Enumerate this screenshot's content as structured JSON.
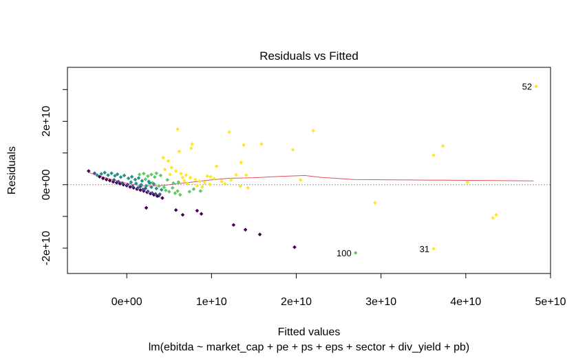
{
  "chart_data": {
    "type": "scatter",
    "title": "Residuals vs Fitted",
    "xlabel": "Fitted values",
    "subtitle": "lm(ebitda ~ market_cap + pe + ps + eps + sector + div_yield + pb)",
    "ylabel": "Residuals",
    "xlim": [
      -7000000000.0,
      50000000000.0
    ],
    "ylim": [
      -28000000000.0,
      37000000000.0
    ],
    "x_ticks": [
      {
        "value": 0,
        "label": "0e+00"
      },
      {
        "value": 10000000000,
        "label": "1e+10"
      },
      {
        "value": 20000000000,
        "label": "2e+10"
      },
      {
        "value": 30000000000,
        "label": "3e+10"
      },
      {
        "value": 40000000000,
        "label": "4e+10"
      },
      {
        "value": 50000000000,
        "label": "5e+10"
      }
    ],
    "y_ticks": [
      {
        "value": -20000000000,
        "label": "-2e+10"
      },
      {
        "value": 0,
        "label": "0e+00"
      },
      {
        "value": 20000000000,
        "label": "2e+10"
      }
    ],
    "y_minor_ticks": [
      -10000000000,
      10000000000,
      30000000000
    ],
    "reference_line_y": 0,
    "colors": {
      "smoother": "#e05060",
      "reference": "#999999",
      "frame": "#000000",
      "palette": [
        "#440154",
        "#3b528b",
        "#21918c",
        "#5ec962",
        "#fde725"
      ]
    },
    "smoother": [
      [
        -4500000000.0,
        3800000000.0
      ],
      [
        -2000000000.0,
        1800000000.0
      ],
      [
        0,
        400000000.0
      ],
      [
        2000000000.0,
        -400000000.0
      ],
      [
        4000000000.0,
        -300000000.0
      ],
      [
        6000000000.0,
        300000000.0
      ],
      [
        8000000000.0,
        900000000.0
      ],
      [
        10000000000.0,
        1500000000.0
      ],
      [
        12000000000.0,
        2000000000.0
      ],
      [
        15000000000.0,
        2200000000.0
      ],
      [
        18000000000.0,
        2600000000.0
      ],
      [
        21000000000.0,
        2900000000.0
      ],
      [
        23000000000.0,
        2300000000.0
      ],
      [
        27000000000.0,
        1600000000.0
      ],
      [
        32000000000.0,
        1500000000.0
      ],
      [
        38000000000.0,
        1400000000.0
      ],
      [
        43000000000.0,
        1300000000.0
      ],
      [
        48000000000.0,
        1200000000.0
      ]
    ],
    "points": [
      {
        "x": 48300000000.0,
        "y": 31000000000.0,
        "c": 4,
        "label": "52"
      },
      {
        "x": 27000000000.0,
        "y": -21500000000.0,
        "c": 3,
        "label": "100"
      },
      {
        "x": 36200000000.0,
        "y": -20200000000.0,
        "c": 4,
        "label": "31"
      },
      {
        "x": 37300000000.0,
        "y": 12200000000.0,
        "c": 4
      },
      {
        "x": 36200000000.0,
        "y": 9300000000.0,
        "c": 4
      },
      {
        "x": 40200000000.0,
        "y": 800000000.0,
        "c": 4
      },
      {
        "x": 43600000000.0,
        "y": -9500000000.0,
        "c": 4
      },
      {
        "x": 43200000000.0,
        "y": -10500000000.0,
        "c": 4
      },
      {
        "x": 29300000000.0,
        "y": -5700000000.0,
        "c": 4
      },
      {
        "x": 22000000000.0,
        "y": 17000000000.0,
        "c": 4
      },
      {
        "x": 19600000000.0,
        "y": 11000000000.0,
        "c": 4
      },
      {
        "x": 20500000000.0,
        "y": 1500000000.0,
        "c": 4
      },
      {
        "x": 15900000000.0,
        "y": 12800000000.0,
        "c": 4
      },
      {
        "x": 13800000000.0,
        "y": 12500000000.0,
        "c": 4
      },
      {
        "x": 12100000000.0,
        "y": 16600000000.0,
        "c": 4
      },
      {
        "x": 13500000000.0,
        "y": 7000000000.0,
        "c": 4
      },
      {
        "x": 14100000000.0,
        "y": 3000000000.0,
        "c": 4
      },
      {
        "x": 14300000000.0,
        "y": -1000000000.0,
        "c": 4
      },
      {
        "x": 13400000000.0,
        "y": -500000000.0,
        "c": 4
      },
      {
        "x": 12300000000.0,
        "y": 1500000000.0,
        "c": 4
      },
      {
        "x": 11200000000.0,
        "y": 1000000000.0,
        "c": 4
      },
      {
        "x": 10600000000.0,
        "y": 5800000000.0,
        "c": 4
      },
      {
        "x": 9900000000.0,
        "y": 2500000000.0,
        "c": 4
      },
      {
        "x": 6000000000.0,
        "y": 17500000000.0,
        "c": 4
      },
      {
        "x": 7700000000.0,
        "y": 12800000000.0,
        "c": 4
      },
      {
        "x": 7600000000.0,
        "y": 11500000000.0,
        "c": 4
      },
      {
        "x": 6200000000.0,
        "y": 10500000000.0,
        "c": 4
      },
      {
        "x": 19800000000.0,
        "y": -19700000000.0,
        "c": 0
      },
      {
        "x": 15700000000.0,
        "y": -15700000000.0,
        "c": 0
      },
      {
        "x": 14000000000.0,
        "y": -14200000000.0,
        "c": 0
      },
      {
        "x": 12600000000.0,
        "y": -12700000000.0,
        "c": 0
      },
      {
        "x": 8800000000.0,
        "y": -9200000000.0,
        "c": 0
      },
      {
        "x": 8300000000.0,
        "y": -8200000000.0,
        "c": 0
      },
      {
        "x": 6600000000.0,
        "y": -9500000000.0,
        "c": 0
      },
      {
        "x": 5800000000.0,
        "y": -8000000000.0,
        "c": 0
      },
      {
        "x": 2300000000.0,
        "y": -7300000000.0,
        "c": 0
      },
      {
        "x": 4200000000.0,
        "y": -4200000000.0,
        "c": 0
      },
      {
        "x": 3800000000.0,
        "y": -3500000000.0,
        "c": 1
      },
      {
        "x": -4500000000.0,
        "y": 4300000000.0,
        "c": 0
      },
      {
        "x": -3800000000.0,
        "y": 3600000000.0,
        "c": 1
      },
      {
        "x": -3500000000.0,
        "y": 3000000000.0,
        "c": 2
      },
      {
        "x": -3000000000.0,
        "y": 3400000000.0,
        "c": 2
      },
      {
        "x": -2600000000.0,
        "y": 3800000000.0,
        "c": 2
      },
      {
        "x": -2200000000.0,
        "y": 3000000000.0,
        "c": 2
      },
      {
        "x": -1800000000.0,
        "y": 3600000000.0,
        "c": 2
      },
      {
        "x": -1400000000.0,
        "y": 2800000000.0,
        "c": 2
      },
      {
        "x": -1100000000.0,
        "y": 3300000000.0,
        "c": 2
      },
      {
        "x": -700000000.0,
        "y": 2400000000.0,
        "c": 2
      },
      {
        "x": -300000000.0,
        "y": 2900000000.0,
        "c": 2
      },
      {
        "x": 200000000.0,
        "y": 2000000000.0,
        "c": 2
      },
      {
        "x": 600000000.0,
        "y": 2500000000.0,
        "c": 2
      },
      {
        "x": 1000000000.0,
        "y": 1600000000.0,
        "c": 2
      },
      {
        "x": 1400000000.0,
        "y": 2100000000.0,
        "c": 2
      },
      {
        "x": 1800000000.0,
        "y": 1200000000.0,
        "c": 2
      },
      {
        "x": 2200000000.0,
        "y": 1700000000.0,
        "c": 3
      },
      {
        "x": 2600000000.0,
        "y": 1000000000.0,
        "c": 2
      },
      {
        "x": 3000000000.0,
        "y": 600000000.0,
        "c": 3
      },
      {
        "x": -3200000000.0,
        "y": 2500000000.0,
        "c": 0
      },
      {
        "x": -2800000000.0,
        "y": 2000000000.0,
        "c": 0
      },
      {
        "x": -2400000000.0,
        "y": 1600000000.0,
        "c": 0
      },
      {
        "x": -2000000000.0,
        "y": 1300000000.0,
        "c": 0
      },
      {
        "x": -1600000000.0,
        "y": 900000000.0,
        "c": 0
      },
      {
        "x": -1200000000.0,
        "y": 600000000.0,
        "c": 0
      },
      {
        "x": -800000000.0,
        "y": 300000000.0,
        "c": 0
      },
      {
        "x": -400000000.0,
        "y": 0.0,
        "c": 0
      },
      {
        "x": 0.0,
        "y": -300000000.0,
        "c": 0
      },
      {
        "x": 400000000.0,
        "y": -700000000.0,
        "c": 0
      },
      {
        "x": 800000000.0,
        "y": -1000000000.0,
        "c": 0
      },
      {
        "x": 1200000000.0,
        "y": -1400000000.0,
        "c": 0
      },
      {
        "x": 1600000000.0,
        "y": -1700000000.0,
        "c": 0
      },
      {
        "x": 2000000000.0,
        "y": -2000000000.0,
        "c": 0
      },
      {
        "x": 2400000000.0,
        "y": -2400000000.0,
        "c": 0
      },
      {
        "x": 2800000000.0,
        "y": -2800000000.0,
        "c": 0
      },
      {
        "x": 3200000000.0,
        "y": -3200000000.0,
        "c": 0
      },
      {
        "x": 3600000000.0,
        "y": -3600000000.0,
        "c": 0
      },
      {
        "x": 3000000000.0,
        "y": -2600000000.0,
        "c": 1
      },
      {
        "x": 2500000000.0,
        "y": -2100000000.0,
        "c": 1
      },
      {
        "x": 1900000000.0,
        "y": -1500000000.0,
        "c": 1
      },
      {
        "x": 1300000000.0,
        "y": -1000000000.0,
        "c": 1
      },
      {
        "x": 700000000.0,
        "y": -500000000.0,
        "c": 1
      },
      {
        "x": 100000000.0,
        "y": 0.0,
        "c": 1
      },
      {
        "x": -500000000.0,
        "y": 500000000.0,
        "c": 1
      },
      {
        "x": -1000000000.0,
        "y": 1000000000.0,
        "c": 1
      },
      {
        "x": -1500000000.0,
        "y": 1500000000.0,
        "c": 1
      },
      {
        "x": 3400000000.0,
        "y": -2900000000.0,
        "c": 1
      },
      {
        "x": 3900000000.0,
        "y": -3000000000.0,
        "c": 1
      },
      {
        "x": 2200000000.0,
        "y": -1200000000.0,
        "c": 1
      },
      {
        "x": 1600000000.0,
        "y": -600000000.0,
        "c": 1
      },
      {
        "x": 500000000.0,
        "y": 800000000.0,
        "c": 2
      },
      {
        "x": 1100000000.0,
        "y": 400000000.0,
        "c": 2
      },
      {
        "x": 1700000000.0,
        "y": 0.0,
        "c": 2
      },
      {
        "x": 2300000000.0,
        "y": -400000000.0,
        "c": 2
      },
      {
        "x": 2900000000.0,
        "y": -800000000.0,
        "c": 2
      },
      {
        "x": 3500000000.0,
        "y": -1200000000.0,
        "c": 2
      },
      {
        "x": 4100000000.0,
        "y": -1600000000.0,
        "c": 2
      },
      {
        "x": 4600000000.0,
        "y": -1800000000.0,
        "c": 3
      },
      {
        "x": 5000000000.0,
        "y": -2200000000.0,
        "c": 3
      },
      {
        "x": 3200000000.0,
        "y": 200000000.0,
        "c": 2
      },
      {
        "x": 2700000000.0,
        "y": 500000000.0,
        "c": 2
      },
      {
        "x": 3800000000.0,
        "y": -400000000.0,
        "c": 3
      },
      {
        "x": 4400000000.0,
        "y": -800000000.0,
        "c": 3
      },
      {
        "x": 5400000000.0,
        "y": -1000000000.0,
        "c": 3
      },
      {
        "x": 6000000000.0,
        "y": -2000000000.0,
        "c": 3
      },
      {
        "x": 6300000000.0,
        "y": -3200000000.0,
        "c": 3
      },
      {
        "x": 5700000000.0,
        "y": -2700000000.0,
        "c": 3
      },
      {
        "x": 7400000000.0,
        "y": -2200000000.0,
        "c": 3
      },
      {
        "x": 7900000000.0,
        "y": -1400000000.0,
        "c": 3
      },
      {
        "x": 8700000000.0,
        "y": -2000000000.0,
        "c": 3
      },
      {
        "x": 3500000000.0,
        "y": 3600000000.0,
        "c": 3
      },
      {
        "x": 4000000000.0,
        "y": 2900000000.0,
        "c": 3
      },
      {
        "x": 4300000000.0,
        "y": 8500000000.0,
        "c": 4
      },
      {
        "x": 4900000000.0,
        "y": 7500000000.0,
        "c": 4
      },
      {
        "x": 5300000000.0,
        "y": 5400000000.0,
        "c": 4
      },
      {
        "x": 5800000000.0,
        "y": 4300000000.0,
        "c": 4
      },
      {
        "x": 6400000000.0,
        "y": 3500000000.0,
        "c": 4
      },
      {
        "x": 7000000000.0,
        "y": 3000000000.0,
        "c": 4
      },
      {
        "x": 7500000000.0,
        "y": 2200000000.0,
        "c": 4
      },
      {
        "x": 8100000000.0,
        "y": 1600000000.0,
        "c": 4
      },
      {
        "x": 8600000000.0,
        "y": 1100000000.0,
        "c": 4
      },
      {
        "x": 9200000000.0,
        "y": 600000000.0,
        "c": 4
      },
      {
        "x": 9800000000.0,
        "y": 100000000.0,
        "c": 4
      },
      {
        "x": 6800000000.0,
        "y": 1200000000.0,
        "c": 4
      },
      {
        "x": 6100000000.0,
        "y": 800000000.0,
        "c": 3
      },
      {
        "x": 5500000000.0,
        "y": 500000000.0,
        "c": 3
      },
      {
        "x": 4800000000.0,
        "y": 1500000000.0,
        "c": 3
      },
      {
        "x": 4500000000.0,
        "y": 4800000000.0,
        "c": 4
      },
      {
        "x": 5100000000.0,
        "y": 3200000000.0,
        "c": 4
      },
      {
        "x": 7200000000.0,
        "y": 400000000.0,
        "c": 4
      },
      {
        "x": 8300000000.0,
        "y": -300000000.0,
        "c": 4
      },
      {
        "x": 8900000000.0,
        "y": -700000000.0,
        "c": 4
      },
      {
        "x": 9500000000.0,
        "y": 2700000000.0,
        "c": 4
      },
      {
        "x": 10300000000.0,
        "y": 1900000000.0,
        "c": 4
      },
      {
        "x": 11600000000.0,
        "y": 200000000.0,
        "c": 4
      },
      {
        "x": 12900000000.0,
        "y": 3100000000.0,
        "c": 4
      },
      {
        "x": 6600000000.0,
        "y": 2200000000.0,
        "c": 4
      },
      {
        "x": 3300000000.0,
        "y": 2400000000.0,
        "c": 3
      },
      {
        "x": 2900000000.0,
        "y": 3200000000.0,
        "c": 3
      },
      {
        "x": 2000000000.0,
        "y": 3500000000.0,
        "c": 3
      },
      {
        "x": 1500000000.0,
        "y": 3200000000.0,
        "c": 3
      },
      {
        "x": 2500000000.0,
        "y": 2700000000.0,
        "c": 3
      }
    ]
  }
}
